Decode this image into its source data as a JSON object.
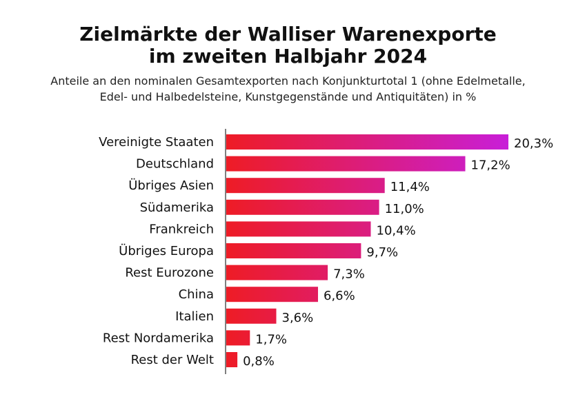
{
  "title_line1": "Zielmärkte der Walliser Warenexporte",
  "title_line2": "im zweiten Halbjahr 2024",
  "subtitle_line1": "Anteile an den nominalen Gesamtexporten nach Konjunkturtotal 1 (ohne Edelmetalle,",
  "subtitle_line2": "Edel- und Halbedelsteine, Kunstgegenstände und Antiquitäten) in %",
  "colors": {
    "bar_start": "#ee1c25",
    "bar_end": "#c81ed8",
    "axis": "#555555",
    "text": "#111111"
  },
  "chart_data": {
    "type": "bar",
    "orientation": "horizontal",
    "categories": [
      "Vereinigte Staaten",
      "Deutschland",
      "Übriges Asien",
      "Südamerika",
      "Frankreich",
      "Übriges Europa",
      "Rest Eurozone",
      "China",
      "Italien",
      "Rest Nordamerika",
      "Rest der Welt"
    ],
    "values": [
      20.3,
      17.2,
      11.4,
      11.0,
      10.4,
      9.7,
      7.3,
      6.6,
      3.6,
      1.7,
      0.8
    ],
    "value_labels": [
      "20,3%",
      "17,2%",
      "11,4%",
      "11,0%",
      "10,4%",
      "9,7%",
      "7,3%",
      "6,6%",
      "3,6%",
      "1,7%",
      "0,8%"
    ],
    "xlim": [
      0,
      20.3
    ],
    "grid": false,
    "legend": "none"
  }
}
